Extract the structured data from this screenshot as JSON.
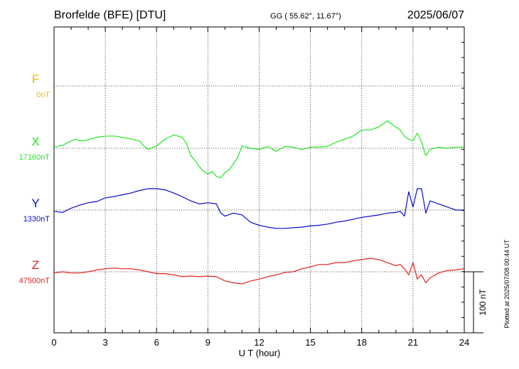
{
  "header": {
    "station": "Brorfelde (BFE)  [DTU]",
    "coords": "GG ( 55.62°,  11.67°)",
    "date": "2025/06/07"
  },
  "side_note": "Plotted at 2025/07/08 00:44 UT",
  "chart_data": {
    "type": "line",
    "xlabel": "U T (hour)",
    "xlim": [
      0,
      24
    ],
    "xticks": [
      "0",
      "3",
      "6",
      "9",
      "12",
      "15",
      "18",
      "21",
      "24"
    ],
    "scale_bar_label": "100 nT",
    "scale_bar_nT": 100,
    "channels": [
      {
        "name": "F",
        "baseline": "0nT",
        "color": "#f5b800",
        "x": [],
        "y": []
      },
      {
        "name": "X",
        "baseline": "17160nT",
        "color": "#22e622",
        "x": [
          0,
          0.5,
          1,
          1.25,
          1.5,
          2,
          2.5,
          3,
          3.5,
          4,
          4.5,
          5,
          5.25,
          5.5,
          6,
          6.5,
          7,
          7.25,
          7.5,
          7.75,
          8,
          8.25,
          8.5,
          8.75,
          9,
          9.25,
          9.5,
          9.75,
          10,
          10.25,
          10.5,
          10.75,
          11,
          11.5,
          12,
          12.5,
          13,
          13.5,
          14,
          14.5,
          15,
          15.5,
          16,
          16.5,
          17,
          17.5,
          18,
          18.5,
          19,
          19.25,
          19.5,
          20,
          20.25,
          20.5,
          20.75,
          21,
          21.25,
          21.5,
          21.75,
          22,
          22.5,
          23,
          23.5,
          24
        ],
        "y": [
          2,
          5,
          12,
          15,
          12,
          14,
          18,
          20,
          20,
          18,
          15,
          12,
          4,
          -2,
          4,
          15,
          22,
          20,
          18,
          8,
          -12,
          -20,
          -30,
          -38,
          -42,
          -38,
          -46,
          -48,
          -40,
          -35,
          -25,
          -15,
          4,
          0,
          -2,
          3,
          -5,
          3,
          2,
          -2,
          2,
          2,
          3,
          10,
          15,
          20,
          30,
          30,
          35,
          40,
          45,
          35,
          30,
          20,
          15,
          12,
          25,
          10,
          -12,
          -2,
          2,
          0,
          2,
          2
        ]
      },
      {
        "name": "Y",
        "baseline": "1330nT",
        "color": "#0a0ad2",
        "x": [
          0,
          0.5,
          1,
          1.5,
          2,
          2.5,
          3,
          3.5,
          4,
          4.5,
          5,
          5.5,
          6,
          6.5,
          7,
          7.5,
          8,
          8.5,
          9,
          9.5,
          9.75,
          10,
          10.5,
          11,
          11.5,
          12,
          12.5,
          13,
          13.5,
          14,
          14.5,
          15,
          15.5,
          16,
          16.5,
          17,
          17.5,
          18,
          18.5,
          19,
          19.5,
          20,
          20.25,
          20.5,
          20.75,
          21,
          21.25,
          21.5,
          21.75,
          22,
          22.5,
          23,
          23.5,
          24
        ],
        "y": [
          -2,
          -4,
          3,
          8,
          12,
          14,
          20,
          22,
          25,
          28,
          32,
          35,
          35,
          33,
          28,
          22,
          15,
          10,
          12,
          10,
          -5,
          -10,
          -5,
          -8,
          -20,
          -25,
          -28,
          -30,
          -30,
          -29,
          -28,
          -26,
          -25,
          -23,
          -20,
          -18,
          -15,
          -12,
          -10,
          -8,
          -5,
          -4,
          -2,
          -10,
          30,
          5,
          35,
          35,
          -5,
          15,
          10,
          5,
          0,
          0
        ]
      },
      {
        "name": "Z",
        "baseline": "47500nT",
        "color": "#e61e1e",
        "x": [
          0,
          0.5,
          1,
          1.5,
          2,
          2.5,
          3,
          3.5,
          4,
          4.5,
          5,
          5.5,
          6,
          6.5,
          7,
          7.5,
          8,
          8.5,
          9,
          9.5,
          10,
          10.5,
          11,
          11.5,
          12,
          12.5,
          13,
          13.5,
          14,
          14.5,
          15,
          15.5,
          16,
          16.5,
          17,
          17.5,
          18,
          18.5,
          19,
          19.5,
          20,
          20.25,
          20.5,
          20.75,
          21,
          21.25,
          21.5,
          21.75,
          22,
          22.5,
          23,
          23.5,
          24
        ],
        "y": [
          -2,
          0,
          -2,
          -2,
          0,
          3,
          5,
          6,
          5,
          5,
          3,
          0,
          -3,
          -3,
          -5,
          -8,
          -7,
          -8,
          -7,
          -8,
          -15,
          -18,
          -20,
          -15,
          -12,
          -8,
          -5,
          -1,
          0,
          5,
          8,
          12,
          12,
          15,
          15,
          18,
          20,
          22,
          20,
          15,
          10,
          12,
          5,
          -5,
          15,
          -12,
          -5,
          -18,
          -10,
          -2,
          2,
          3,
          5
        ]
      }
    ]
  }
}
